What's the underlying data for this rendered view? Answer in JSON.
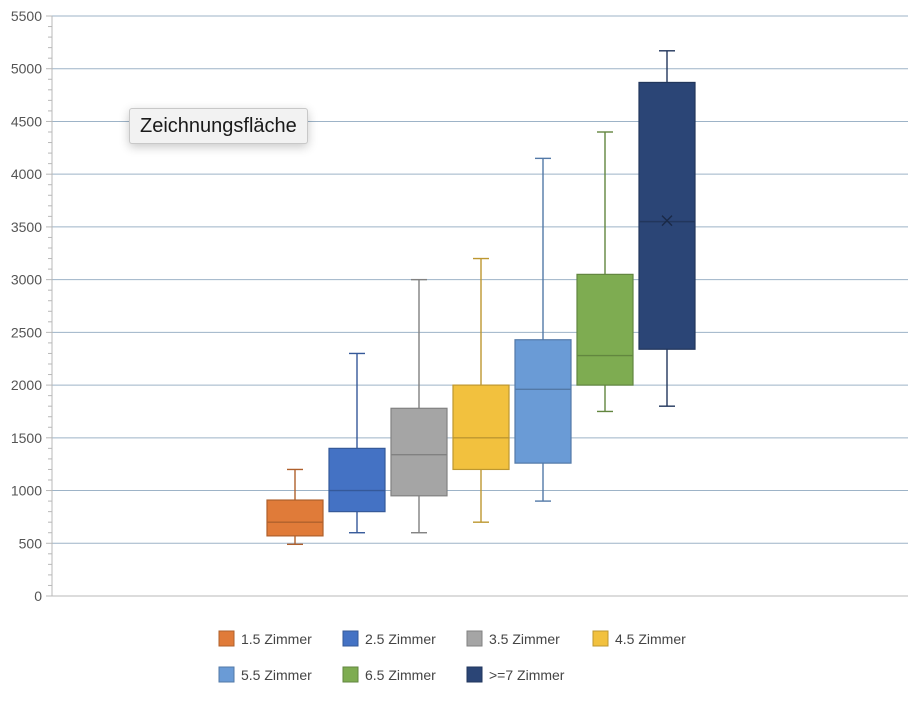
{
  "tooltip": {
    "text": "Zeichnungsfläche"
  },
  "chart_data": {
    "type": "box",
    "title": "",
    "xlabel": "",
    "ylabel": "",
    "ylim": [
      0,
      5500
    ],
    "y_ticks": [
      0,
      500,
      1000,
      1500,
      2000,
      2500,
      3000,
      3500,
      4000,
      4500,
      5000,
      5500
    ],
    "grid": true,
    "legend_position": "bottom",
    "series": [
      {
        "name": "1.5 Zimmer",
        "color": "#E07B39",
        "min": 490,
        "q1": 570,
        "median": 700,
        "q3": 910,
        "max": 1200
      },
      {
        "name": "2.5 Zimmer",
        "color": "#4472C4",
        "min": 600,
        "q1": 800,
        "median": 1000,
        "q3": 1400,
        "max": 2300
      },
      {
        "name": "3.5 Zimmer",
        "color": "#A5A5A5",
        "min": 600,
        "q1": 950,
        "median": 1340,
        "q3": 1780,
        "max": 3000
      },
      {
        "name": "4.5 Zimmer",
        "color": "#F2C13E",
        "min": 700,
        "q1": 1200,
        "median": 1500,
        "q3": 2000,
        "max": 3200
      },
      {
        "name": "5.5 Zimmer",
        "color": "#6A9BD6",
        "min": 900,
        "q1": 1260,
        "median": 1960,
        "q3": 2430,
        "max": 4150
      },
      {
        "name": "6.5 Zimmer",
        "color": "#7EAC51",
        "min": 1750,
        "q1": 2000,
        "median": 2280,
        "q3": 3050,
        "max": 4400
      },
      {
        "name": ">=7 Zimmer",
        "color": "#2B4576",
        "min": 1800,
        "q1": 2340,
        "median": 3550,
        "q3": 4870,
        "max": 5170,
        "mean": 3560
      }
    ]
  }
}
